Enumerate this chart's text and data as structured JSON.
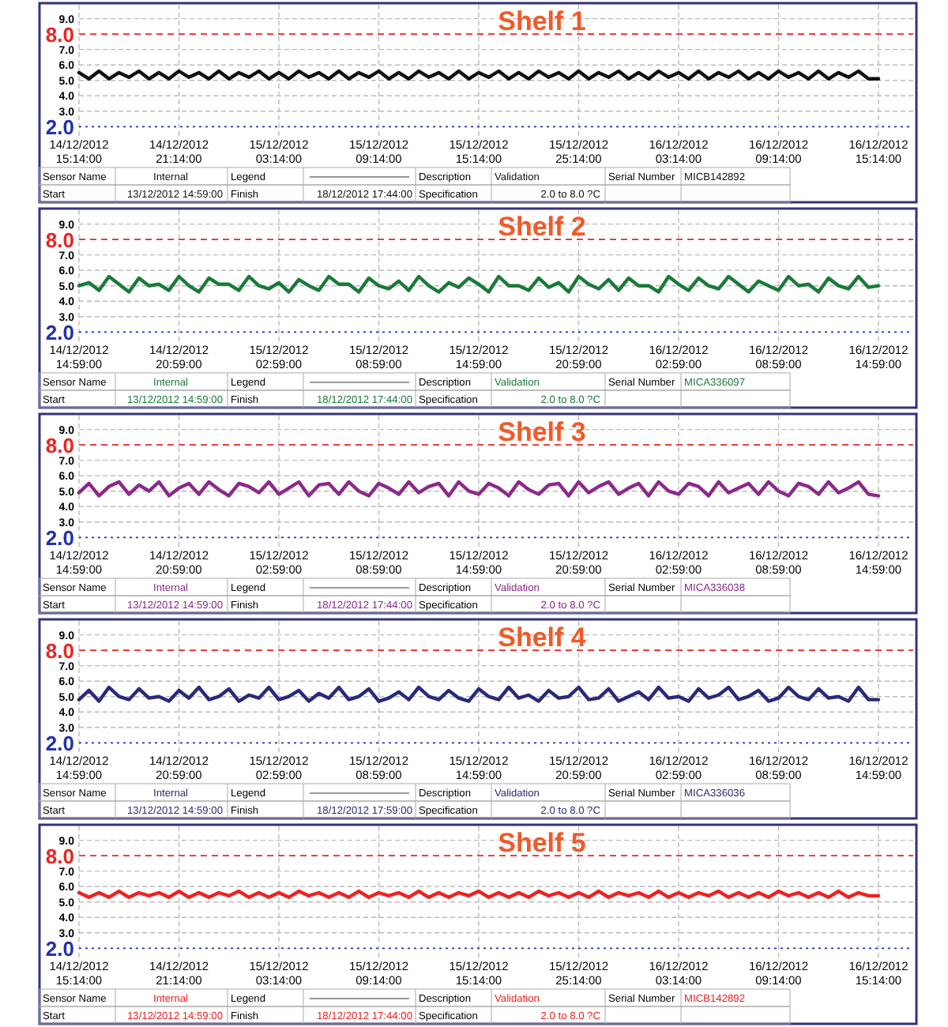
{
  "chart_data": [
    {
      "type": "line",
      "title": "Shelf 1",
      "categories": [
        "14/12/2012\n15:14:00",
        null,
        null,
        null,
        null,
        null,
        null,
        null,
        null,
        null,
        "14/12/2012\n21:14:00",
        null,
        null,
        null,
        null,
        null,
        null,
        null,
        null,
        null,
        "15/12/2012\n03:14:00",
        null,
        null,
        null,
        null,
        null,
        null,
        null,
        null,
        null,
        "15/12/2012\n09:14:00",
        null,
        null,
        null,
        null,
        null,
        null,
        null,
        null,
        null,
        "15/12/2012\n15:14:00",
        null,
        null,
        null,
        null,
        null,
        null,
        null,
        null,
        null,
        "15/12/2012\n25:14:00",
        null,
        null,
        null,
        null,
        null,
        null,
        null,
        null,
        null,
        "16/12/2012\n03:14:00",
        null,
        null,
        null,
        null,
        null,
        null,
        null,
        null,
        null,
        "16/12/2012\n09:14:00",
        null,
        null,
        null,
        null,
        null,
        null,
        null,
        null,
        null,
        "16/12/2012\n15:14:00"
      ],
      "ylim": [
        1.3,
        9.9
      ],
      "yticks": [
        {
          "value": 3,
          "label": "3.0"
        },
        {
          "value": 4,
          "label": "4.0"
        },
        {
          "value": 5,
          "label": "5.0"
        },
        {
          "value": 6,
          "label": "6.0"
        },
        {
          "value": 7,
          "label": "7.0"
        },
        {
          "value": 9,
          "label": "9.0"
        }
      ],
      "grid": true,
      "ref_lines": [
        {
          "axis": "y",
          "value": 8,
          "label": "8.0",
          "color": "#ee2222",
          "line_style": "dashed"
        },
        {
          "axis": "y",
          "value": 2,
          "label": "2.0",
          "color": "#2233aa",
          "line_style": "dotted"
        }
      ],
      "series": [
        {
          "color": "#111111",
          "values": [
            5.5,
            5.1,
            5.6,
            5.1,
            5.5,
            5.2,
            5.6,
            5.1,
            5.5,
            5.1,
            5.6,
            5.2,
            5.5,
            5.1,
            5.6,
            5.1,
            5.5,
            5.2,
            5.6,
            5.1,
            5.5,
            5.1,
            5.6,
            5.2,
            5.5,
            5.1,
            5.6,
            5.1,
            5.5,
            5.2,
            5.6,
            5.1,
            5.5,
            5.1,
            5.6,
            5.2,
            5.5,
            5.1,
            5.6,
            5.1,
            5.5,
            5.2,
            5.6,
            5.1,
            5.5,
            5.1,
            5.6,
            5.2,
            5.5,
            5.1,
            5.6,
            5.1,
            5.5,
            5.2,
            5.6,
            5.1,
            5.5,
            5.1,
            5.6,
            5.2,
            5.5,
            5.1,
            5.6,
            5.1,
            5.5,
            5.2,
            5.6,
            5.1,
            5.5,
            5.1,
            5.6,
            5.2,
            5.5,
            5.1,
            5.6,
            5.1,
            5.5,
            5.2,
            5.6,
            5.1,
            5.1
          ]
        }
      ],
      "annotations": [
        "Sensor Name",
        "Internal",
        "Legend",
        "Description",
        "Validation",
        "Serial Number",
        "MICB142892",
        "Start",
        "13/12/2012  14:59:00",
        "Finish",
        "18/12/2012  17:44:00",
        "Specification",
        "2.0 to 8.0 ?C"
      ]
    },
    {
      "type": "line",
      "title": "Shelf 2",
      "categories": [
        "14/12/2012\n14:59:00",
        null,
        null,
        null,
        null,
        null,
        null,
        null,
        null,
        null,
        "14/12/2012\n20:59:00",
        null,
        null,
        null,
        null,
        null,
        null,
        null,
        null,
        null,
        "15/12/2012\n02:59:00",
        null,
        null,
        null,
        null,
        null,
        null,
        null,
        null,
        null,
        "15/12/2012\n08:59:00",
        null,
        null,
        null,
        null,
        null,
        null,
        null,
        null,
        null,
        "15/12/2012\n14:59:00",
        null,
        null,
        null,
        null,
        null,
        null,
        null,
        null,
        null,
        "15/12/2012\n20:59:00",
        null,
        null,
        null,
        null,
        null,
        null,
        null,
        null,
        null,
        "16/12/2012\n02:59:00",
        null,
        null,
        null,
        null,
        null,
        null,
        null,
        null,
        null,
        "16/12/2012\n08:59:00",
        null,
        null,
        null,
        null,
        null,
        null,
        null,
        null,
        null,
        "16/12/2012\n14:59:00"
      ],
      "ylim": [
        1.3,
        9.9
      ],
      "yticks": [
        {
          "value": 3,
          "label": "3.0"
        },
        {
          "value": 4,
          "label": "4.0"
        },
        {
          "value": 5,
          "label": "5.0"
        },
        {
          "value": 6,
          "label": "6.0"
        },
        {
          "value": 7,
          "label": "7.0"
        },
        {
          "value": 9,
          "label": "9.0"
        }
      ],
      "grid": true,
      "ref_lines": [
        {
          "axis": "y",
          "value": 8,
          "label": "8.0",
          "color": "#ee2222",
          "line_style": "dashed"
        },
        {
          "axis": "y",
          "value": 2,
          "label": "2.0",
          "color": "#2233aa",
          "line_style": "dotted"
        }
      ],
      "series": [
        {
          "color": "#1a7a3a",
          "values": [
            5.0,
            5.2,
            4.7,
            5.6,
            5.1,
            4.6,
            5.5,
            5.0,
            5.1,
            4.7,
            5.6,
            5.0,
            4.6,
            5.5,
            5.1,
            5.1,
            4.7,
            5.6,
            5.0,
            4.8,
            5.2,
            4.6,
            5.4,
            5.0,
            4.7,
            5.6,
            5.1,
            5.1,
            4.6,
            5.5,
            5.0,
            4.8,
            5.3,
            4.7,
            5.6,
            5.0,
            4.6,
            5.2,
            4.9,
            5.5,
            5.1,
            4.6,
            5.6,
            5.0,
            5.0,
            4.7,
            5.5,
            4.9,
            5.2,
            4.6,
            5.6,
            5.1,
            4.8,
            5.4,
            4.7,
            5.5,
            5.0,
            5.0,
            4.6,
            5.6,
            5.1,
            4.7,
            5.5,
            5.0,
            4.8,
            5.6,
            5.1,
            4.6,
            5.3,
            5.0,
            4.7,
            5.6,
            5.0,
            5.1,
            4.6,
            5.5,
            5.0,
            4.8,
            5.6,
            4.9,
            5.0
          ]
        }
      ],
      "annotations": [
        "Sensor Name",
        "Internal",
        "Legend",
        "Description",
        "Validation",
        "Serial Number",
        "MICA336097",
        "Start",
        "13/12/2012  14:59:00",
        "Finish",
        "18/12/2012  17:44:00",
        "Specification",
        "2.0 to 8.0 ?C"
      ]
    },
    {
      "type": "line",
      "title": "Shelf 3",
      "categories": [
        "14/12/2012\n14:59:00",
        null,
        null,
        null,
        null,
        null,
        null,
        null,
        null,
        null,
        "14/12/2012\n20:59:00",
        null,
        null,
        null,
        null,
        null,
        null,
        null,
        null,
        null,
        "15/12/2012\n02:59:00",
        null,
        null,
        null,
        null,
        null,
        null,
        null,
        null,
        null,
        "15/12/2012\n08:59:00",
        null,
        null,
        null,
        null,
        null,
        null,
        null,
        null,
        null,
        "15/12/2012\n14:59:00",
        null,
        null,
        null,
        null,
        null,
        null,
        null,
        null,
        null,
        "15/12/2012\n20:59:00",
        null,
        null,
        null,
        null,
        null,
        null,
        null,
        null,
        null,
        "16/12/2012\n02:59:00",
        null,
        null,
        null,
        null,
        null,
        null,
        null,
        null,
        null,
        "16/12/2012\n08:59:00",
        null,
        null,
        null,
        null,
        null,
        null,
        null,
        null,
        null,
        "16/12/2012\n14:59:00"
      ],
      "ylim": [
        1.3,
        9.9
      ],
      "yticks": [
        {
          "value": 3,
          "label": "3.0"
        },
        {
          "value": 4,
          "label": "4.0"
        },
        {
          "value": 5,
          "label": "5.0"
        },
        {
          "value": 6,
          "label": "6.0"
        },
        {
          "value": 7,
          "label": "7.0"
        },
        {
          "value": 9,
          "label": "9.0"
        }
      ],
      "grid": true,
      "ref_lines": [
        {
          "axis": "y",
          "value": 8,
          "label": "8.0",
          "color": "#ee2222",
          "line_style": "dashed"
        },
        {
          "axis": "y",
          "value": 2,
          "label": "2.0",
          "color": "#2233aa",
          "line_style": "dotted"
        }
      ],
      "series": [
        {
          "color": "#8a2a8a",
          "values": [
            4.9,
            5.5,
            4.7,
            5.3,
            5.6,
            4.8,
            5.4,
            5.0,
            5.6,
            4.7,
            5.2,
            5.5,
            4.8,
            5.6,
            5.1,
            4.7,
            5.5,
            5.3,
            4.9,
            5.6,
            4.8,
            5.2,
            5.6,
            4.7,
            5.4,
            5.5,
            4.8,
            5.6,
            5.0,
            4.7,
            5.5,
            5.2,
            4.8,
            5.6,
            4.9,
            5.3,
            5.5,
            4.7,
            5.6,
            5.0,
            4.8,
            5.5,
            5.2,
            4.7,
            5.6,
            5.1,
            4.8,
            5.4,
            5.5,
            4.7,
            5.6,
            4.9,
            5.3,
            5.6,
            4.8,
            5.2,
            5.5,
            4.7,
            5.6,
            5.0,
            4.8,
            5.5,
            5.3,
            4.7,
            5.6,
            4.9,
            5.2,
            5.5,
            4.8,
            5.6,
            5.0,
            4.7,
            5.5,
            5.3,
            4.8,
            5.6,
            4.9,
            5.2,
            5.6,
            4.8,
            4.7
          ]
        }
      ],
      "annotations": [
        "Sensor Name",
        "Internal",
        "Legend",
        "Description",
        "Validation",
        "Serial Number",
        "MICA336038",
        "Start",
        "13/12/2012  14:59:00",
        "Finish",
        "18/12/2012  17:44:00",
        "Specification",
        "2.0 to 8.0 ?C"
      ]
    },
    {
      "type": "line",
      "title": "Shelf 4",
      "categories": [
        "14/12/2012\n14:59:00",
        null,
        null,
        null,
        null,
        null,
        null,
        null,
        null,
        null,
        "14/12/2012\n20:59:00",
        null,
        null,
        null,
        null,
        null,
        null,
        null,
        null,
        null,
        "15/12/2012\n02:59:00",
        null,
        null,
        null,
        null,
        null,
        null,
        null,
        null,
        null,
        "15/12/2012\n08:59:00",
        null,
        null,
        null,
        null,
        null,
        null,
        null,
        null,
        null,
        "15/12/2012\n14:59:00",
        null,
        null,
        null,
        null,
        null,
        null,
        null,
        null,
        null,
        "15/12/2012\n20:59:00",
        null,
        null,
        null,
        null,
        null,
        null,
        null,
        null,
        null,
        "16/12/2012\n02:59:00",
        null,
        null,
        null,
        null,
        null,
        null,
        null,
        null,
        null,
        "16/12/2012\n08:59:00",
        null,
        null,
        null,
        null,
        null,
        null,
        null,
        null,
        null,
        "16/12/2012\n14:59:00"
      ],
      "ylim": [
        1.3,
        9.9
      ],
      "yticks": [
        {
          "value": 3,
          "label": "3.0"
        },
        {
          "value": 4,
          "label": "4.0"
        },
        {
          "value": 5,
          "label": "5.0"
        },
        {
          "value": 6,
          "label": "6.0"
        },
        {
          "value": 7,
          "label": "7.0"
        },
        {
          "value": 9,
          "label": "9.0"
        }
      ],
      "grid": true,
      "ref_lines": [
        {
          "axis": "y",
          "value": 8,
          "label": "8.0",
          "color": "#ee2222",
          "line_style": "dashed"
        },
        {
          "axis": "y",
          "value": 2,
          "label": "2.0",
          "color": "#2233aa",
          "line_style": "dotted"
        }
      ],
      "series": [
        {
          "color": "#2a2a7a",
          "values": [
            4.8,
            5.4,
            4.7,
            5.6,
            5.0,
            4.8,
            5.5,
            4.9,
            5.0,
            4.7,
            5.4,
            4.9,
            5.6,
            4.8,
            5.0,
            5.5,
            4.7,
            5.1,
            4.9,
            5.6,
            4.8,
            5.0,
            5.4,
            4.7,
            5.2,
            4.9,
            5.6,
            4.8,
            5.0,
            5.5,
            4.7,
            4.9,
            5.3,
            4.8,
            5.6,
            5.0,
            4.8,
            5.4,
            4.9,
            4.7,
            5.5,
            5.0,
            4.8,
            5.6,
            4.9,
            5.1,
            4.7,
            5.4,
            4.9,
            5.0,
            5.6,
            4.8,
            4.9,
            5.5,
            4.7,
            5.0,
            5.3,
            4.8,
            5.6,
            4.9,
            5.0,
            4.7,
            5.5,
            4.9,
            5.1,
            5.6,
            4.8,
            5.0,
            5.4,
            4.7,
            4.9,
            5.6,
            5.0,
            4.8,
            5.5,
            4.9,
            5.0,
            4.7,
            5.6,
            4.8,
            4.8
          ]
        }
      ],
      "annotations": [
        "Sensor Name",
        "Internal",
        "Legend",
        "Description",
        "Validation",
        "Serial Number",
        "MICA336036",
        "Start",
        "13/12/2012  14:59:00",
        "Finish",
        "18/12/2012  17:59:00",
        "Specification",
        "2.0 to 8.0 ?C"
      ]
    },
    {
      "type": "line",
      "title": "Shelf 5",
      "categories": [
        "14/12/2012\n15:14:00",
        null,
        null,
        null,
        null,
        null,
        null,
        null,
        null,
        null,
        "14/12/2012\n21:14:00",
        null,
        null,
        null,
        null,
        null,
        null,
        null,
        null,
        null,
        "15/12/2012\n03:14:00",
        null,
        null,
        null,
        null,
        null,
        null,
        null,
        null,
        null,
        "15/12/2012\n09:14:00",
        null,
        null,
        null,
        null,
        null,
        null,
        null,
        null,
        null,
        "15/12/2012\n15:14:00",
        null,
        null,
        null,
        null,
        null,
        null,
        null,
        null,
        null,
        "15/12/2012\n25:14:00",
        null,
        null,
        null,
        null,
        null,
        null,
        null,
        null,
        null,
        "16/12/2012\n03:14:00",
        null,
        null,
        null,
        null,
        null,
        null,
        null,
        null,
        null,
        "16/12/2012\n09:14:00",
        null,
        null,
        null,
        null,
        null,
        null,
        null,
        null,
        null,
        "16/12/2012\n15:14:00"
      ],
      "ylim": [
        1.3,
        9.9
      ],
      "yticks": [
        {
          "value": 3,
          "label": "3.0"
        },
        {
          "value": 4,
          "label": "4.0"
        },
        {
          "value": 5,
          "label": "5.0"
        },
        {
          "value": 6,
          "label": "6.0"
        },
        {
          "value": 7,
          "label": "7.0"
        },
        {
          "value": 9,
          "label": "9.0"
        }
      ],
      "grid": true,
      "ref_lines": [
        {
          "axis": "y",
          "value": 8,
          "label": "8.0",
          "color": "#ee2222",
          "line_style": "dashed"
        },
        {
          "axis": "y",
          "value": 2,
          "label": "2.0",
          "color": "#2233aa",
          "line_style": "dotted"
        }
      ],
      "series": [
        {
          "color": "#ee2222",
          "values": [
            5.6,
            5.3,
            5.6,
            5.3,
            5.7,
            5.3,
            5.6,
            5.4,
            5.6,
            5.3,
            5.7,
            5.3,
            5.6,
            5.3,
            5.6,
            5.4,
            5.7,
            5.3,
            5.6,
            5.3,
            5.6,
            5.3,
            5.7,
            5.4,
            5.6,
            5.3,
            5.6,
            5.3,
            5.7,
            5.3,
            5.6,
            5.4,
            5.6,
            5.3,
            5.7,
            5.3,
            5.6,
            5.3,
            5.6,
            5.4,
            5.7,
            5.3,
            5.6,
            5.3,
            5.6,
            5.3,
            5.7,
            5.4,
            5.6,
            5.3,
            5.6,
            5.3,
            5.7,
            5.3,
            5.6,
            5.4,
            5.6,
            5.3,
            5.7,
            5.3,
            5.6,
            5.3,
            5.6,
            5.4,
            5.7,
            5.3,
            5.6,
            5.3,
            5.6,
            5.3,
            5.7,
            5.4,
            5.6,
            5.3,
            5.6,
            5.3,
            5.7,
            5.3,
            5.6,
            5.4,
            5.4
          ]
        }
      ],
      "annotations": [
        "Sensor Name",
        "Internal",
        "Legend",
        "Description",
        "Validation",
        "Serial Number",
        "MICB142892",
        "Start",
        "13/12/2012  14:59:00",
        "Finish",
        "18/12/2012  17:44:00",
        "Specification",
        "2.0 to 8.0 ?C"
      ]
    }
  ]
}
